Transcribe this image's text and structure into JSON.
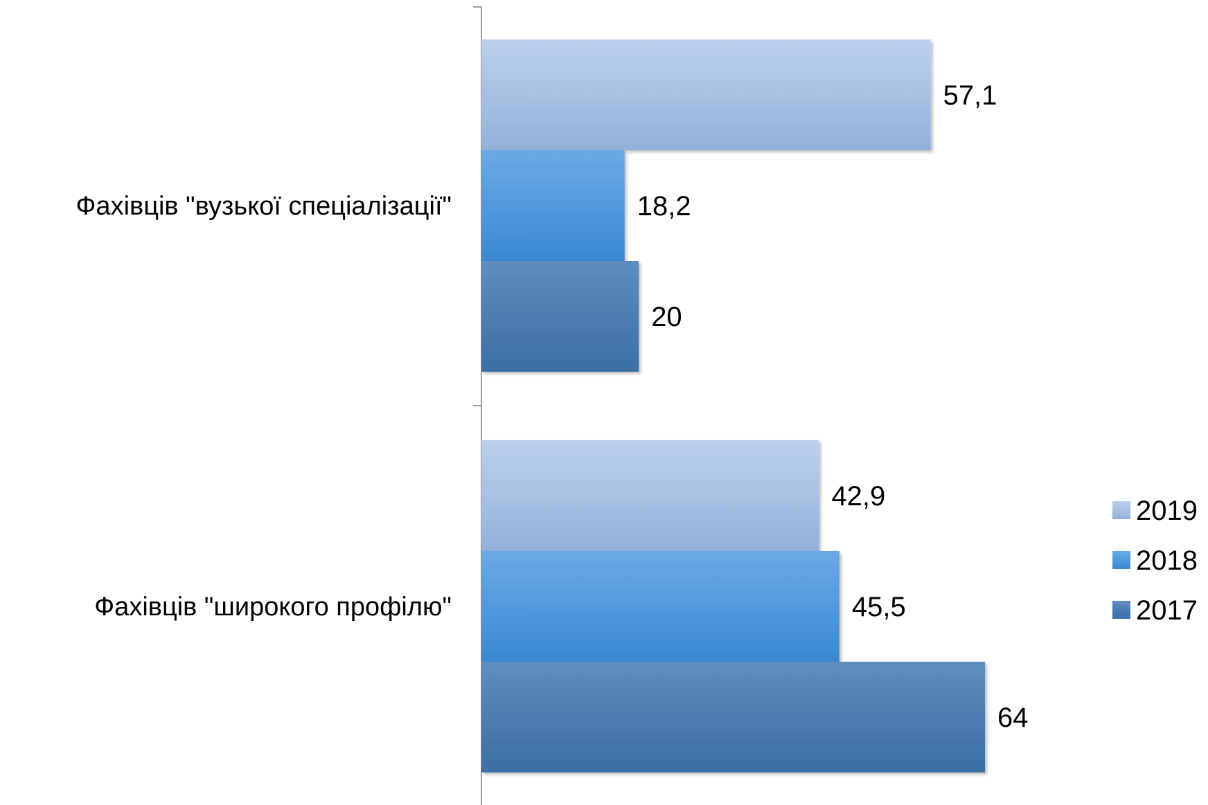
{
  "chart_data": {
    "type": "bar",
    "orientation": "horizontal",
    "categories": [
      "Фахівців \"вузької спеціалізації\"",
      "Фахівців \"широкого профілю\""
    ],
    "series": [
      {
        "name": "2019",
        "values": [
          57.1,
          42.9
        ],
        "labels": [
          "57,1",
          "42,9"
        ],
        "color": "#a5bfe3"
      },
      {
        "name": "2018",
        "values": [
          18.2,
          45.5
        ],
        "labels": [
          "18,2",
          "45,5"
        ],
        "color": "#4a90d9"
      },
      {
        "name": "2017",
        "values": [
          20,
          64
        ],
        "labels": [
          "20",
          "64"
        ],
        "color": "#3f78b4"
      }
    ],
    "xlim": [
      0,
      100
    ],
    "grid": false,
    "legend_position": "right"
  }
}
